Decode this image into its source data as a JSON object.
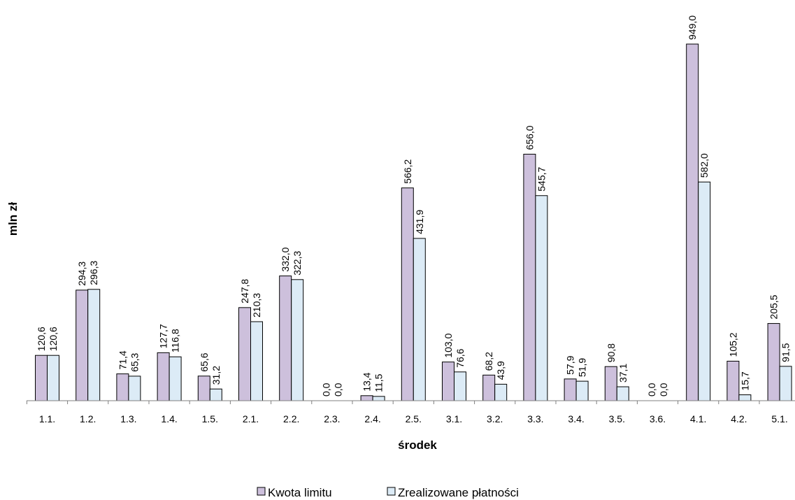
{
  "chart_data": {
    "type": "bar",
    "xlabel": "środek",
    "ylabel": "mln zł",
    "ylim": [
      0,
      960
    ],
    "categories": [
      "1.1.",
      "1.2.",
      "1.3.",
      "1.4.",
      "1.5.",
      "2.1.",
      "2.2.",
      "2.3.",
      "2.4.",
      "2.5.",
      "3.1.",
      "3.2.",
      "3.3.",
      "3.4.",
      "3.5.",
      "3.6.",
      "4.1.",
      "4.2.",
      "5.1."
    ],
    "series": [
      {
        "name": "Kwota limitu",
        "color": "#cdc0dc",
        "values": [
          120.6,
          294.3,
          71.4,
          127.7,
          65.6,
          247.8,
          332.0,
          0.0,
          13.4,
          566.2,
          103.0,
          68.2,
          656.0,
          57.9,
          90.8,
          0.0,
          949.0,
          105.2,
          205.5
        ],
        "labels": [
          "120,6",
          "294,3",
          "71,4",
          "127,7",
          "65,6",
          "247,8",
          "332,0",
          "0,0",
          "13,4",
          "566,2",
          "103,0",
          "68,2",
          "656,0",
          "57,9",
          "90,8",
          "0,0",
          "949,0",
          "105,2",
          "205,5"
        ]
      },
      {
        "name": "Zrealizowane płatności",
        "color": "#dcebf6",
        "values": [
          120.6,
          296.3,
          65.3,
          116.8,
          31.2,
          210.3,
          322.3,
          0.0,
          11.5,
          431.9,
          76.6,
          43.9,
          545.7,
          51.9,
          37.1,
          0.0,
          582.0,
          15.7,
          91.5
        ],
        "labels": [
          "120,6",
          "296,3",
          "65,3",
          "116,8",
          "31,2",
          "210,3",
          "322,3",
          "0,0",
          "11,5",
          "431,9",
          "76,6",
          "43,9",
          "545,7",
          "51,9",
          "37,1",
          "0,0",
          "582,0",
          "15,7",
          "91,5"
        ]
      }
    ],
    "grid": false,
    "legend_position": "bottom"
  }
}
